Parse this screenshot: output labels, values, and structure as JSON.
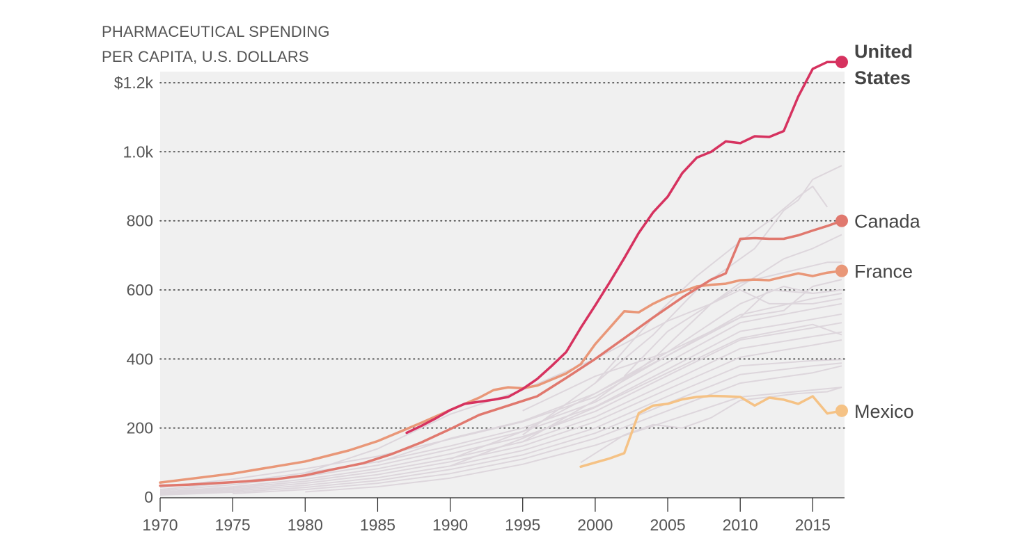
{
  "chart_data": {
    "type": "line",
    "title_lines": [
      "PHARMACEUTICAL SPENDING",
      "PER CAPITA, U.S. DOLLARS"
    ],
    "x_range": [
      1970,
      2017
    ],
    "ylim": [
      0,
      1200
    ],
    "x_ticks": [
      {
        "value": 1970,
        "label": "1970"
      },
      {
        "value": 1975,
        "label": "1975"
      },
      {
        "value": 1980,
        "label": "1980"
      },
      {
        "value": 1985,
        "label": "1985"
      },
      {
        "value": 1990,
        "label": "1990"
      },
      {
        "value": 1995,
        "label": "1995"
      },
      {
        "value": 2000,
        "label": "2000"
      },
      {
        "value": 2005,
        "label": "2005"
      },
      {
        "value": 2010,
        "label": "2010"
      },
      {
        "value": 2015,
        "label": "2015"
      }
    ],
    "y_ticks": [
      {
        "value": 0,
        "label": "0"
      },
      {
        "value": 200,
        "label": "200"
      },
      {
        "value": 400,
        "label": "400"
      },
      {
        "value": 600,
        "label": "600"
      },
      {
        "value": 800,
        "label": "800"
      },
      {
        "value": 1000,
        "label": "1.0k"
      },
      {
        "value": 1200,
        "label": "$1.2k"
      }
    ],
    "grid": "horizontal-dotted",
    "colors": {
      "background": "#f0f0f0",
      "other_countries": "#ddd6dc",
      "united_states": "#d6325f",
      "canada": "#e0786e",
      "france": "#e99778",
      "mexico": "#f5c285",
      "text": "#555555"
    },
    "highlighted_series": [
      {
        "name": "United States",
        "label_lines": [
          "United",
          "States"
        ],
        "color": "#d6325f",
        "bold": true,
        "x": [
          1987,
          1988,
          1989,
          1990,
          1991,
          1992,
          1993,
          1994,
          1995,
          1996,
          1997,
          1998,
          1999,
          2000,
          2001,
          2002,
          2003,
          2004,
          2005,
          2006,
          2007,
          2008,
          2009,
          2010,
          2011,
          2012,
          2013,
          2014,
          2015,
          2016,
          2017
        ],
        "y": [
          186,
          206,
          228,
          252,
          270,
          276,
          282,
          290,
          313,
          342,
          380,
          420,
          490,
          555,
          622,
          692,
          765,
          825,
          870,
          938,
          983,
          1000,
          1030,
          1025,
          1045,
          1043,
          1060,
          1160,
          1240,
          1260,
          1260
        ]
      },
      {
        "name": "Canada",
        "label_lines": [
          "Canada"
        ],
        "color": "#e0786e",
        "bold": false,
        "x": [
          1970,
          1972,
          1975,
          1978,
          1980,
          1982,
          1984,
          1986,
          1988,
          1990,
          1992,
          1994,
          1996,
          1998,
          2000,
          2002,
          2004,
          2006,
          2008,
          2009,
          2010,
          2011,
          2012,
          2013,
          2014,
          2015,
          2016,
          2017
        ],
        "y": [
          33,
          36,
          43,
          52,
          63,
          81,
          98,
          125,
          158,
          197,
          238,
          265,
          292,
          345,
          400,
          460,
          520,
          578,
          630,
          648,
          748,
          750,
          748,
          748,
          758,
          772,
          785,
          800
        ]
      },
      {
        "name": "France",
        "label_lines": [
          "France"
        ],
        "color": "#e99778",
        "bold": false,
        "x": [
          1970,
          1975,
          1980,
          1983,
          1985,
          1988,
          1990,
          1992,
          1993,
          1994,
          1995,
          1996,
          1998,
          1999,
          2000,
          2001,
          2002,
          2003,
          2004,
          2005,
          2006,
          2007,
          2008,
          2009,
          2010,
          2011,
          2012,
          2013,
          2014,
          2015,
          2016,
          2017
        ],
        "y": [
          42,
          68,
          103,
          135,
          162,
          215,
          252,
          288,
          310,
          318,
          315,
          323,
          358,
          385,
          443,
          490,
          538,
          535,
          560,
          580,
          595,
          610,
          615,
          618,
          628,
          630,
          628,
          638,
          648,
          640,
          650,
          655
        ]
      },
      {
        "name": "Mexico",
        "label_lines": [
          "Mexico"
        ],
        "color": "#f5c285",
        "bold": false,
        "x": [
          1999,
          2000,
          2001,
          2002,
          2003,
          2004,
          2005,
          2006,
          2007,
          2008,
          2009,
          2010,
          2011,
          2012,
          2013,
          2014,
          2015,
          2016,
          2017
        ],
        "y": [
          88,
          100,
          112,
          127,
          243,
          265,
          270,
          283,
          290,
          293,
          292,
          290,
          265,
          288,
          282,
          270,
          292,
          242,
          250
        ]
      }
    ],
    "other_series": [
      {
        "x": [
          1970,
          1975,
          1980,
          1985,
          1990,
          1995,
          2000,
          2005,
          2010,
          2015,
          2017
        ],
        "y": [
          28,
          52,
          82,
          118,
          168,
          218,
          290,
          410,
          528,
          575,
          590
        ]
      },
      {
        "x": [
          1970,
          1975,
          1980,
          1985,
          1990,
          1995,
          2000,
          2005,
          2010,
          2015,
          2017
        ],
        "y": [
          22,
          42,
          70,
          102,
          148,
          200,
          275,
          390,
          505,
          545,
          560
        ]
      },
      {
        "x": [
          1970,
          1975,
          1980,
          1985,
          1990,
          1995,
          2000,
          2005,
          2010,
          2015,
          2017
        ],
        "y": [
          18,
          36,
          60,
          92,
          138,
          190,
          262,
          370,
          480,
          515,
          530
        ]
      },
      {
        "x": [
          1970,
          1975,
          1980,
          1985,
          1990,
          1995,
          2000,
          2005,
          2010,
          2015,
          2017
        ],
        "y": [
          14,
          30,
          52,
          82,
          125,
          175,
          248,
          352,
          455,
          490,
          505
        ]
      },
      {
        "x": [
          1970,
          1975,
          1980,
          1985,
          1990,
          1995,
          2000,
          2005,
          2010,
          2015,
          2017
        ],
        "y": [
          12,
          26,
          46,
          74,
          112,
          160,
          232,
          330,
          430,
          465,
          478
        ]
      },
      {
        "x": [
          1970,
          1975,
          1980,
          1985,
          1990,
          1995,
          2000,
          2005,
          2010,
          2015,
          2017
        ],
        "y": [
          10,
          22,
          40,
          65,
          102,
          148,
          218,
          312,
          405,
          440,
          455
        ]
      },
      {
        "x": [
          1970,
          1975,
          1980,
          1985,
          1990,
          1995,
          2000,
          2005,
          2010,
          2015,
          2017
        ],
        "y": [
          8,
          18,
          34,
          56,
          90,
          135,
          200,
          292,
          380,
          395,
          398
        ]
      },
      {
        "x": [
          1970,
          1975,
          1980,
          1985,
          1990,
          1995,
          2000,
          2005,
          2010,
          2015,
          2017
        ],
        "y": [
          6,
          14,
          28,
          48,
          80,
          122,
          185,
          272,
          355,
          380,
          388
        ]
      },
      {
        "x": [
          1975,
          1980,
          1985,
          1990,
          1995,
          2000,
          2005,
          2010,
          2015,
          2017
        ],
        "y": [
          10,
          22,
          40,
          68,
          110,
          170,
          250,
          330,
          360,
          380
        ]
      },
      {
        "x": [
          1980,
          1985,
          1990,
          1995,
          2000,
          2005,
          2010,
          2015,
          2017
        ],
        "y": [
          15,
          30,
          55,
          95,
          150,
          220,
          290,
          310,
          318
        ]
      },
      {
        "x": [
          1980,
          1985,
          1990,
          1995,
          2000,
          2005,
          2008,
          2010,
          2012,
          2015,
          2017
        ],
        "y": [
          70,
          140,
          240,
          310,
          400,
          510,
          560,
          600,
          560,
          560,
          575
        ]
      },
      {
        "x": [
          1985,
          1990,
          1995,
          2000,
          2005,
          2010,
          2013,
          2015,
          2017
        ],
        "y": [
          100,
          170,
          220,
          300,
          420,
          560,
          610,
          590,
          600
        ]
      },
      {
        "x": [
          1990,
          1995,
          2000,
          2005,
          2010,
          2015,
          2017
        ],
        "y": [
          90,
          170,
          260,
          360,
          460,
          500,
          470
        ]
      },
      {
        "x": [
          1990,
          1995,
          2000,
          2005,
          2010,
          2012,
          2015,
          2017
        ],
        "y": [
          110,
          190,
          300,
          410,
          520,
          600,
          590,
          600
        ]
      },
      {
        "x": [
          1995,
          2000,
          2005,
          2010,
          2013,
          2015,
          2017
        ],
        "y": [
          250,
          350,
          420,
          520,
          540,
          610,
          630
        ]
      },
      {
        "x": [
          1995,
          2000,
          2004,
          2008,
          2010,
          2013,
          2015,
          2017
        ],
        "y": [
          160,
          280,
          400,
          560,
          610,
          690,
          720,
          760
        ]
      },
      {
        "x": [
          1995,
          2000,
          2004,
          2007,
          2009,
          2011,
          2013,
          2014,
          2015,
          2017
        ],
        "y": [
          180,
          330,
          470,
          600,
          660,
          720,
          830,
          860,
          920,
          960
        ]
      },
      {
        "x": [
          2000,
          2004,
          2007,
          2010,
          2012,
          2014,
          2015,
          2016
        ],
        "y": [
          330,
          520,
          640,
          740,
          800,
          870,
          900,
          840
        ]
      },
      {
        "x": [
          2002,
          2005,
          2008,
          2010,
          2012,
          2014,
          2016,
          2017
        ],
        "y": [
          350,
          480,
          560,
          620,
          640,
          660,
          680,
          680
        ]
      },
      {
        "x": [
          1999,
          2002,
          2004,
          2006,
          2008,
          2010,
          2012,
          2014,
          2016,
          2017
        ],
        "y": [
          100,
          180,
          210,
          200,
          230,
          280,
          290,
          300,
          305,
          318
        ]
      }
    ]
  }
}
